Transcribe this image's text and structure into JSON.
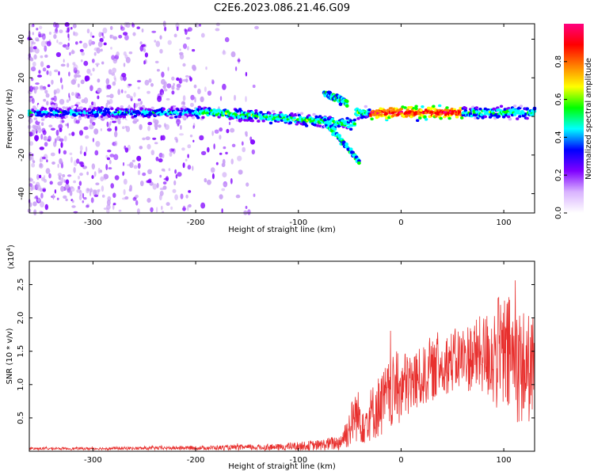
{
  "title": "C2E6.2023.086.21.46.G09",
  "chart_data": [
    {
      "type": "heatmap",
      "xlabel": "Height of straight line (km)",
      "ylabel": "Frequency (Hz)",
      "xlim": [
        -362,
        130
      ],
      "ylim": [
        -50,
        48
      ],
      "xticks": [
        -300,
        -200,
        -100,
        0,
        100
      ],
      "yticks": [
        -40,
        -20,
        0,
        20,
        40
      ],
      "colorbar": {
        "label": "Normalized spectral amplitude",
        "range": [
          0,
          1
        ],
        "ticks": [
          0.0,
          0.2,
          0.4,
          0.6,
          0.8
        ],
        "tick_labels": [
          "0.0",
          "0.2",
          "0.4",
          "0.6",
          "0.8"
        ],
        "colormap": [
          "#ffffff",
          "#d9b3ff",
          "#8000ff",
          "#0000ff",
          "#00ffff",
          "#00ff00",
          "#ffff00",
          "#ff8000",
          "#ff0000",
          "#ff007f"
        ]
      },
      "features": [
        {
          "name": "carrier",
          "x": [
            -362,
            130
          ],
          "y_center": 2,
          "peak_amplitude": 1.0
        },
        {
          "name": "upper branch",
          "x": [
            -75,
            -52
          ],
          "y": [
            12,
            7
          ]
        },
        {
          "name": "lower branch",
          "x": [
            -75,
            -40
          ],
          "y": [
            -2,
            -24
          ]
        }
      ],
      "noise": {
        "x": [
          -362,
          -180
        ],
        "description": "scattered low-amplitude noise"
      }
    },
    {
      "type": "line",
      "xlabel": "Height of straight line (km)",
      "ylabel": "SNR (10 * v/v)",
      "yscale_label": "(x10",
      "yscale_exp": "4",
      "xlim": [
        -362,
        130
      ],
      "ylim": [
        0,
        2.85
      ],
      "xticks": [
        -300,
        -200,
        -100,
        0,
        100
      ],
      "yticks": [
        0.5,
        1.0,
        1.5,
        2.0,
        2.5
      ],
      "ytick_labels": [
        "0.5",
        "1.0",
        "1.5",
        "2.0",
        "2.5"
      ],
      "color": "#e8302e",
      "envelope": {
        "x": [
          -362,
          -300,
          -200,
          -120,
          -80,
          -60,
          -50,
          -45,
          -40,
          -35,
          -30,
          -20,
          -10,
          0,
          20,
          40,
          60,
          80,
          95,
          105,
          115,
          130
        ],
        "mean": [
          0.04,
          0.04,
          0.05,
          0.06,
          0.09,
          0.13,
          0.35,
          0.55,
          0.5,
          0.45,
          0.55,
          0.7,
          0.85,
          0.95,
          1.1,
          1.3,
          1.4,
          1.45,
          1.45,
          1.4,
          1.3,
          1.2
        ],
        "amplitude": [
          0.02,
          0.02,
          0.03,
          0.05,
          0.08,
          0.12,
          0.3,
          0.4,
          0.4,
          0.35,
          0.4,
          0.5,
          0.55,
          0.55,
          0.45,
          0.45,
          0.5,
          0.6,
          0.9,
          0.95,
          0.9,
          0.8
        ]
      }
    }
  ]
}
